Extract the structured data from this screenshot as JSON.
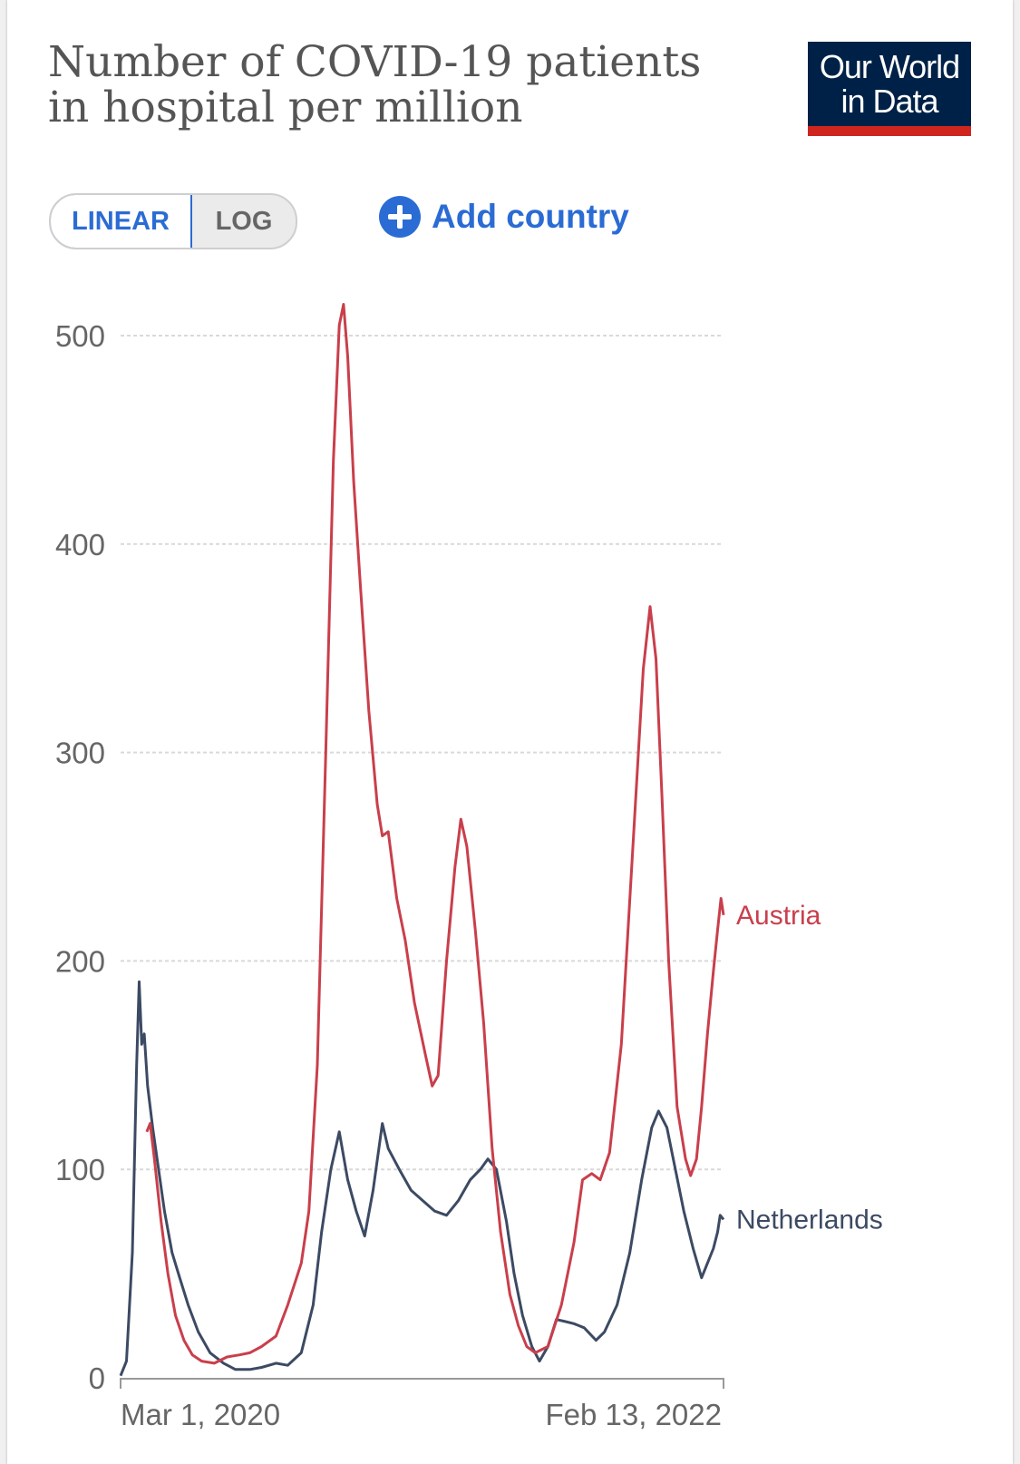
{
  "header": {
    "title": "Number of COVID-19 patients in hospital per million",
    "logo_line1": "Our World",
    "logo_line2": "in Data"
  },
  "controls": {
    "linear_label": "LINEAR",
    "log_label": "LOG",
    "add_country_label": "Add country",
    "active_scale": "linear"
  },
  "colors": {
    "accent": "#2b6cd4",
    "logo_bg": "#002147",
    "logo_bar": "#ce261e"
  },
  "chart_data": {
    "type": "line",
    "title": "Number of COVID-19 patients in hospital per million",
    "xlabel": "",
    "ylabel": "",
    "x_tick_labels": [
      "Mar 1, 2020",
      "Feb 13, 2022"
    ],
    "x_range": [
      "2020-03-01",
      "2022-02-13"
    ],
    "ylim": [
      0,
      500
    ],
    "y_ticks": [
      0,
      100,
      200,
      300,
      400,
      500
    ],
    "grid": "horizontal dashed",
    "legend": "inline labels at line ends",
    "series": [
      {
        "name": "Netherlands",
        "color": "#3c4a63",
        "points": [
          [
            "2020-03-01",
            1
          ],
          [
            "2020-03-08",
            8
          ],
          [
            "2020-03-15",
            60
          ],
          [
            "2020-03-20",
            150
          ],
          [
            "2020-03-23",
            190
          ],
          [
            "2020-03-26",
            160
          ],
          [
            "2020-03-29",
            165
          ],
          [
            "2020-04-02",
            140
          ],
          [
            "2020-04-08",
            120
          ],
          [
            "2020-04-15",
            100
          ],
          [
            "2020-04-22",
            80
          ],
          [
            "2020-05-01",
            60
          ],
          [
            "2020-05-10",
            48
          ],
          [
            "2020-05-20",
            35
          ],
          [
            "2020-06-01",
            22
          ],
          [
            "2020-06-15",
            12
          ],
          [
            "2020-07-01",
            7
          ],
          [
            "2020-07-15",
            4
          ],
          [
            "2020-08-01",
            4
          ],
          [
            "2020-08-15",
            5
          ],
          [
            "2020-09-01",
            7
          ],
          [
            "2020-09-15",
            6
          ],
          [
            "2020-10-01",
            12
          ],
          [
            "2020-10-15",
            35
          ],
          [
            "2020-10-25",
            70
          ],
          [
            "2020-11-05",
            100
          ],
          [
            "2020-11-15",
            118
          ],
          [
            "2020-11-25",
            95
          ],
          [
            "2020-12-05",
            80
          ],
          [
            "2020-12-15",
            68
          ],
          [
            "2020-12-25",
            90
          ],
          [
            "2021-01-05",
            122
          ],
          [
            "2021-01-12",
            110
          ],
          [
            "2021-01-25",
            100
          ],
          [
            "2021-02-08",
            90
          ],
          [
            "2021-02-22",
            85
          ],
          [
            "2021-03-08",
            80
          ],
          [
            "2021-03-22",
            78
          ],
          [
            "2021-04-05",
            85
          ],
          [
            "2021-04-19",
            95
          ],
          [
            "2021-05-01",
            100
          ],
          [
            "2021-05-10",
            105
          ],
          [
            "2021-05-20",
            100
          ],
          [
            "2021-06-01",
            75
          ],
          [
            "2021-06-10",
            50
          ],
          [
            "2021-06-20",
            30
          ],
          [
            "2021-07-01",
            15
          ],
          [
            "2021-07-10",
            8
          ],
          [
            "2021-07-20",
            15
          ],
          [
            "2021-07-30",
            28
          ],
          [
            "2021-08-10",
            27
          ],
          [
            "2021-08-20",
            26
          ],
          [
            "2021-09-01",
            24
          ],
          [
            "2021-09-15",
            18
          ],
          [
            "2021-09-25",
            22
          ],
          [
            "2021-10-10",
            35
          ],
          [
            "2021-10-25",
            60
          ],
          [
            "2021-11-08",
            95
          ],
          [
            "2021-11-20",
            120
          ],
          [
            "2021-11-28",
            128
          ],
          [
            "2021-12-08",
            120
          ],
          [
            "2021-12-18",
            100
          ],
          [
            "2021-12-28",
            80
          ],
          [
            "2022-01-08",
            62
          ],
          [
            "2022-01-18",
            48
          ],
          [
            "2022-01-25",
            55
          ],
          [
            "2022-02-01",
            62
          ],
          [
            "2022-02-06",
            70
          ],
          [
            "2022-02-09",
            78
          ],
          [
            "2022-02-13",
            76
          ]
        ]
      },
      {
        "name": "Austria",
        "color": "#c93f4b",
        "points": [
          [
            "2020-04-01",
            118
          ],
          [
            "2020-04-05",
            122
          ],
          [
            "2020-04-10",
            105
          ],
          [
            "2020-04-18",
            75
          ],
          [
            "2020-04-26",
            50
          ],
          [
            "2020-05-05",
            30
          ],
          [
            "2020-05-15",
            18
          ],
          [
            "2020-05-25",
            11
          ],
          [
            "2020-06-05",
            8
          ],
          [
            "2020-06-20",
            7
          ],
          [
            "2020-07-05",
            10
          ],
          [
            "2020-07-20",
            11
          ],
          [
            "2020-08-01",
            12
          ],
          [
            "2020-08-15",
            15
          ],
          [
            "2020-09-01",
            20
          ],
          [
            "2020-09-15",
            35
          ],
          [
            "2020-10-01",
            55
          ],
          [
            "2020-10-10",
            80
          ],
          [
            "2020-10-20",
            150
          ],
          [
            "2020-10-30",
            300
          ],
          [
            "2020-11-08",
            440
          ],
          [
            "2020-11-15",
            505
          ],
          [
            "2020-11-20",
            515
          ],
          [
            "2020-11-25",
            490
          ],
          [
            "2020-12-02",
            430
          ],
          [
            "2020-12-10",
            380
          ],
          [
            "2020-12-20",
            320
          ],
          [
            "2020-12-30",
            275
          ],
          [
            "2021-01-05",
            260
          ],
          [
            "2021-01-12",
            262
          ],
          [
            "2021-01-22",
            230
          ],
          [
            "2021-02-01",
            210
          ],
          [
            "2021-02-12",
            180
          ],
          [
            "2021-02-25",
            155
          ],
          [
            "2021-03-05",
            140
          ],
          [
            "2021-03-12",
            145
          ],
          [
            "2021-03-22",
            200
          ],
          [
            "2021-04-01",
            245
          ],
          [
            "2021-04-08",
            268
          ],
          [
            "2021-04-15",
            255
          ],
          [
            "2021-04-25",
            215
          ],
          [
            "2021-05-05",
            170
          ],
          [
            "2021-05-15",
            110
          ],
          [
            "2021-05-25",
            70
          ],
          [
            "2021-06-05",
            40
          ],
          [
            "2021-06-15",
            25
          ],
          [
            "2021-06-25",
            15
          ],
          [
            "2021-07-05",
            12
          ],
          [
            "2021-07-20",
            15
          ],
          [
            "2021-08-05",
            35
          ],
          [
            "2021-08-20",
            65
          ],
          [
            "2021-08-30",
            95
          ],
          [
            "2021-09-10",
            98
          ],
          [
            "2021-09-20",
            95
          ],
          [
            "2021-10-01",
            108
          ],
          [
            "2021-10-15",
            160
          ],
          [
            "2021-10-28",
            250
          ],
          [
            "2021-11-10",
            340
          ],
          [
            "2021-11-18",
            370
          ],
          [
            "2021-11-25",
            345
          ],
          [
            "2021-12-02",
            280
          ],
          [
            "2021-12-10",
            200
          ],
          [
            "2021-12-20",
            130
          ],
          [
            "2021-12-30",
            105
          ],
          [
            "2022-01-05",
            97
          ],
          [
            "2022-01-12",
            105
          ],
          [
            "2022-01-18",
            130
          ],
          [
            "2022-01-25",
            165
          ],
          [
            "2022-02-01",
            195
          ],
          [
            "2022-02-06",
            215
          ],
          [
            "2022-02-10",
            230
          ],
          [
            "2022-02-13",
            222
          ]
        ]
      }
    ]
  }
}
